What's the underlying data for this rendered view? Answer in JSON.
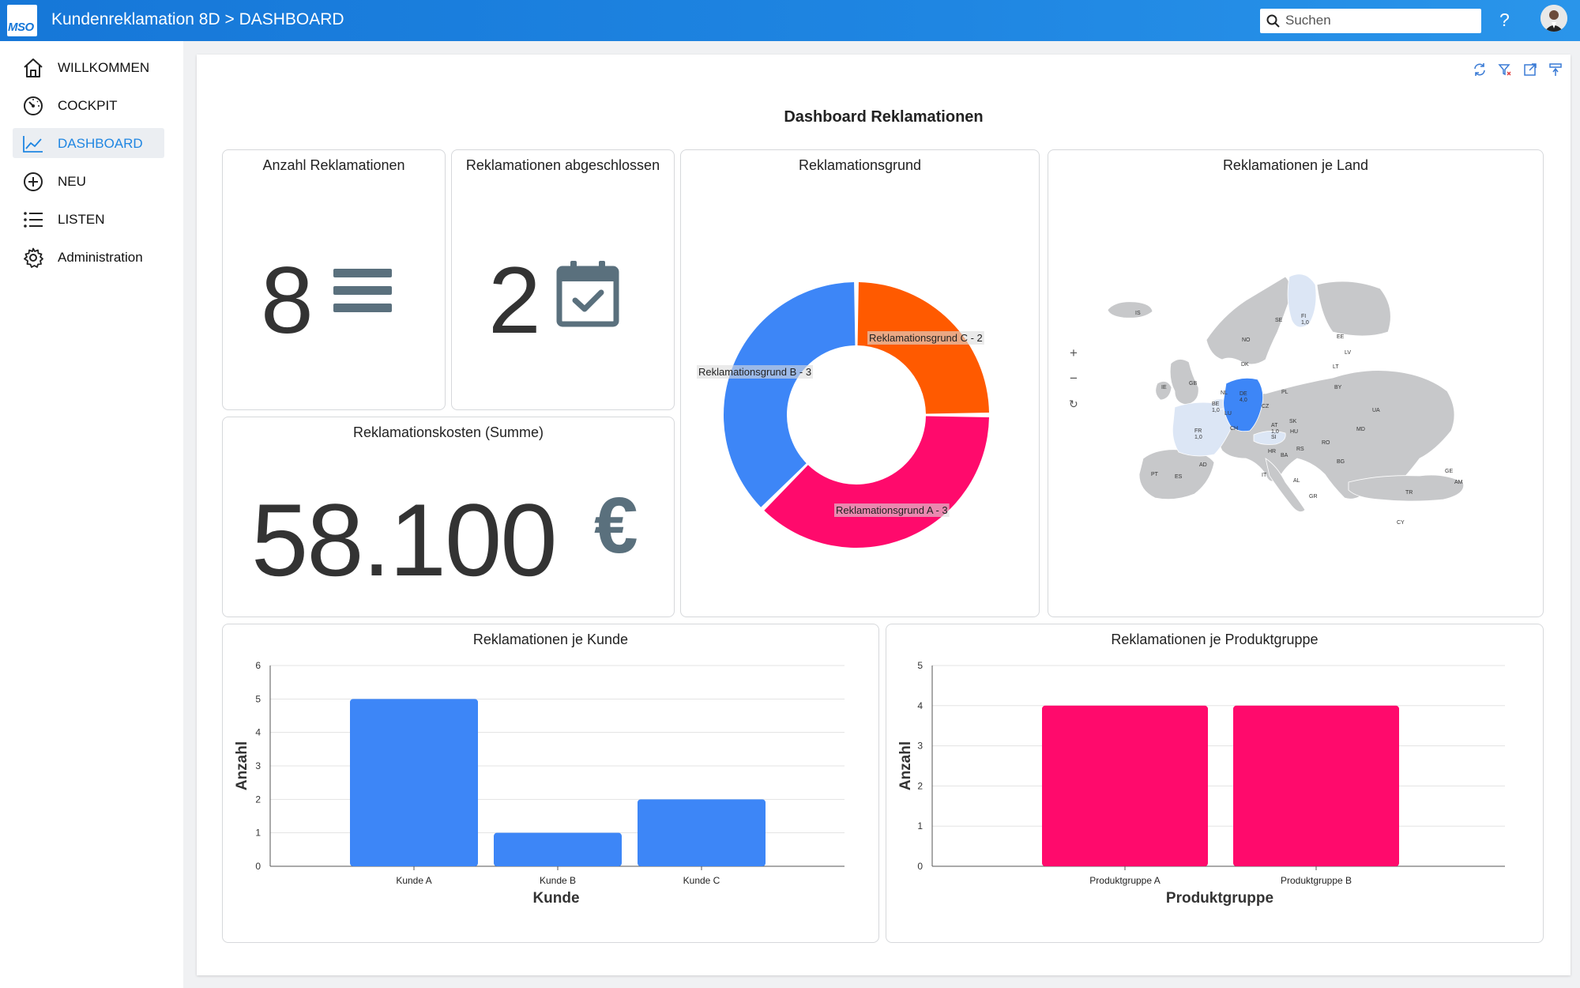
{
  "header": {
    "logo_text": "MSO",
    "title": "Kundenreklamation 8D > DASHBOARD",
    "search_placeholder": "Suchen",
    "help_label": "?"
  },
  "sidebar": {
    "items": [
      {
        "label": "WILLKOMMEN",
        "icon": "home-icon"
      },
      {
        "label": "COCKPIT",
        "icon": "gauge-icon"
      },
      {
        "label": "DASHBOARD",
        "icon": "line-chart-icon",
        "active": true
      },
      {
        "label": "NEU",
        "icon": "plus-circle-icon"
      },
      {
        "label": "LISTEN",
        "icon": "list-icon"
      },
      {
        "label": "Administration",
        "icon": "gear-icon"
      }
    ]
  },
  "dashboard": {
    "title": "Dashboard Reklamationen",
    "kpis": {
      "anzahl": {
        "title": "Anzahl Reklamationen",
        "value": "8"
      },
      "abgeschlossen": {
        "title": "Reklamationen abgeschlossen",
        "value": "2"
      },
      "kosten": {
        "title": "Reklamationskosten (Summe)",
        "value": "58.100",
        "unit": "€"
      }
    },
    "map": {
      "title": "Reklamationen je Land",
      "zoom_in": "+",
      "zoom_out": "−",
      "reset": "↻",
      "countries": [
        {
          "code": "IS"
        },
        {
          "code": "NO"
        },
        {
          "code": "SE"
        },
        {
          "code": "FI",
          "value": "1,0"
        },
        {
          "code": "EE"
        },
        {
          "code": "LV"
        },
        {
          "code": "LT"
        },
        {
          "code": "DK"
        },
        {
          "code": "GB"
        },
        {
          "code": "IE"
        },
        {
          "code": "NL"
        },
        {
          "code": "BE",
          "value": "1,0"
        },
        {
          "code": "DE",
          "value": "4,0"
        },
        {
          "code": "LU"
        },
        {
          "code": "FR",
          "value": "1,0"
        },
        {
          "code": "PL"
        },
        {
          "code": "BY"
        },
        {
          "code": "UA"
        },
        {
          "code": "CZ"
        },
        {
          "code": "SK"
        },
        {
          "code": "AT",
          "value": "1,0"
        },
        {
          "code": "SI"
        },
        {
          "code": "CH"
        },
        {
          "code": "HU"
        },
        {
          "code": "MD"
        },
        {
          "code": "RO"
        },
        {
          "code": "HR"
        },
        {
          "code": "RS"
        },
        {
          "code": "BA"
        },
        {
          "code": "BG"
        },
        {
          "code": "IT"
        },
        {
          "code": "AL"
        },
        {
          "code": "GR"
        },
        {
          "code": "TR"
        },
        {
          "code": "CY"
        },
        {
          "code": "GE"
        },
        {
          "code": "AM"
        },
        {
          "code": "ES"
        },
        {
          "code": "PT"
        },
        {
          "code": "AD"
        }
      ]
    }
  },
  "chart_data": [
    {
      "type": "pie",
      "title": "Reklamationsgrund",
      "series": [
        {
          "name": "Reklamationsgrund C",
          "value": 2,
          "label": "Reklamationsgrund C - 2",
          "color": "#ff5a00"
        },
        {
          "name": "Reklamationsgrund A",
          "value": 3,
          "label": "Reklamationsgrund A - 3",
          "color": "#ff0a6c"
        },
        {
          "name": "Reklamationsgrund B",
          "value": 3,
          "label": "Reklamationsgrund B - 3",
          "color": "#3d86f7"
        }
      ],
      "donut": true
    },
    {
      "type": "bar",
      "title": "Reklamationen je Kunde",
      "categories": [
        "Kunde A",
        "Kunde B",
        "Kunde C"
      ],
      "values": [
        5,
        1,
        2
      ],
      "xlabel": "Kunde",
      "ylabel": "Anzahl",
      "ylim": [
        0,
        6
      ],
      "yticks": [
        "0",
        "1",
        "2",
        "3",
        "4",
        "5",
        "6"
      ],
      "color": "#3d86f7",
      "grid": true
    },
    {
      "type": "bar",
      "title": "Reklamationen je Produktgruppe",
      "categories": [
        "Produktgruppe A",
        "Produktgruppe B"
      ],
      "values": [
        4,
        4
      ],
      "xlabel": "Produktgruppe",
      "ylabel": "Anzahl",
      "ylim": [
        0,
        5
      ],
      "yticks": [
        "0",
        "1",
        "2",
        "3",
        "4",
        "5"
      ],
      "color": "#ff0a6c",
      "grid": true
    }
  ]
}
